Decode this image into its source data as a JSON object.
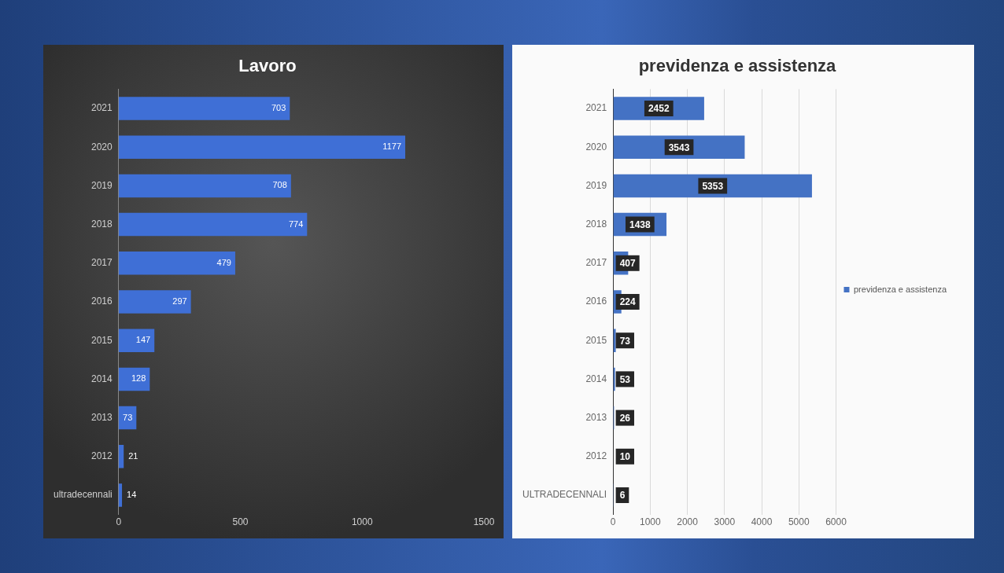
{
  "chart_data": [
    {
      "type": "bar",
      "orientation": "horizontal",
      "title": "Lavoro",
      "categories": [
        "2021",
        "2020",
        "2019",
        "2018",
        "2017",
        "2016",
        "2015",
        "2014",
        "2013",
        "2012",
        "ultradecennali"
      ],
      "series": [
        {
          "color": "#3f6fd6",
          "values": [
            703,
            1177,
            708,
            774,
            479,
            297,
            147,
            128,
            73,
            21,
            14
          ]
        }
      ],
      "xlim": [
        0,
        1500
      ],
      "xticks": [
        0,
        500,
        1000,
        1500
      ],
      "data_labels": true,
      "grid": false,
      "legend": false
    },
    {
      "type": "bar",
      "orientation": "horizontal",
      "title": "previdenza e assistenza",
      "categories": [
        "2021",
        "2020",
        "2019",
        "2018",
        "2017",
        "2016",
        "2015",
        "2014",
        "2013",
        "2012",
        "ULTRADECENNALI"
      ],
      "series": [
        {
          "name": "previdenza e assistenza",
          "color": "#4472c4",
          "values": [
            2452,
            3543,
            5353,
            1438,
            407,
            224,
            73,
            53,
            26,
            10,
            6
          ]
        }
      ],
      "xlim": [
        0,
        6000
      ],
      "xticks": [
        0,
        1000,
        2000,
        3000,
        4000,
        5000,
        6000
      ],
      "data_labels": true,
      "grid": "x",
      "legend": "right"
    }
  ]
}
